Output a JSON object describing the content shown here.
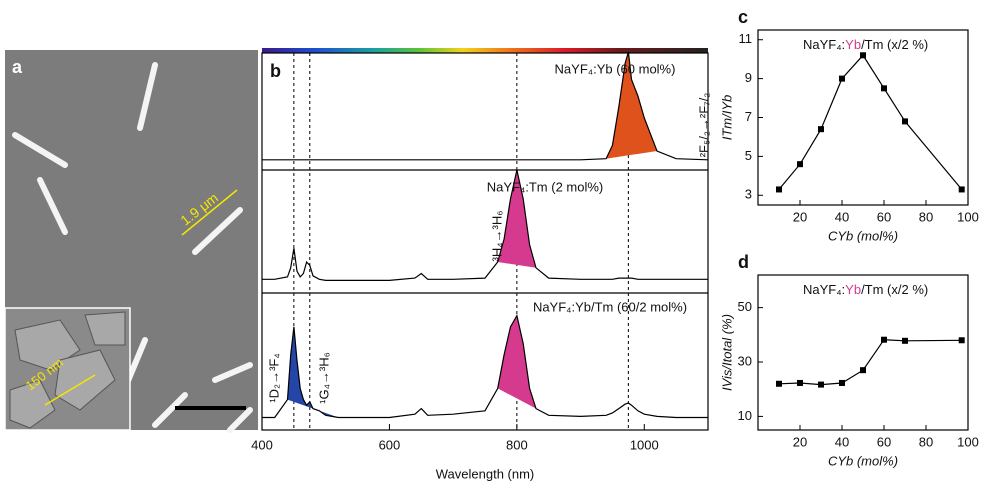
{
  "chart_data": [
    {
      "type": "image",
      "label": "a",
      "annotations": [
        "1.9 μm",
        "150 nm"
      ]
    },
    {
      "type": "spectra",
      "label": "b",
      "x_label": "Wavelength (nm)",
      "xlim": [
        400,
        1100
      ],
      "xticks": [
        400,
        600,
        800,
        1000
      ],
      "reference_lines": [
        450,
        475,
        800,
        975
      ],
      "x": [
        400,
        420,
        440,
        445,
        450,
        455,
        460,
        465,
        470,
        475,
        480,
        490,
        500,
        520,
        550,
        600,
        640,
        650,
        660,
        700,
        750,
        770,
        780,
        790,
        800,
        810,
        820,
        830,
        850,
        900,
        940,
        950,
        960,
        970,
        975,
        980,
        990,
        1000,
        1020,
        1050,
        1100
      ],
      "series": [
        {
          "name": "NaYF₄:Yb (60 mol%)",
          "color": "#000000",
          "fill_color": "#e0521c",
          "fill_range": [
            930,
            1040
          ],
          "transitions": [
            "²F₅/₂→²F₇/₂"
          ],
          "values": [
            0.02,
            0.02,
            0.02,
            0.02,
            0.02,
            0.02,
            0.02,
            0.02,
            0.02,
            0.02,
            0.02,
            0.02,
            0.02,
            0.02,
            0.02,
            0.02,
            0.02,
            0.02,
            0.02,
            0.02,
            0.02,
            0.02,
            0.02,
            0.02,
            0.02,
            0.02,
            0.02,
            0.02,
            0.02,
            0.02,
            0.03,
            0.15,
            0.5,
            0.9,
            1.0,
            0.75,
            0.6,
            0.4,
            0.1,
            0.03,
            0.02
          ]
        },
        {
          "name": "NaYF₄:Tm (2 mol%)",
          "color": "#000000",
          "fill_color": "#d63a8e",
          "fill_range": [
            760,
            840
          ],
          "transitions": [
            "³H₄→³H₆"
          ],
          "values": [
            0.05,
            0.05,
            0.07,
            0.15,
            0.32,
            0.12,
            0.07,
            0.1,
            0.2,
            0.17,
            0.08,
            0.05,
            0.04,
            0.04,
            0.04,
            0.04,
            0.06,
            0.1,
            0.05,
            0.05,
            0.06,
            0.2,
            0.4,
            0.75,
            1.0,
            0.75,
            0.35,
            0.15,
            0.06,
            0.05,
            0.05,
            0.05,
            0.06,
            0.06,
            0.06,
            0.06,
            0.05,
            0.05,
            0.05,
            0.05,
            0.05
          ]
        },
        {
          "name": "NaYF₄:Yb/Tm (60/2 mol%)",
          "color": "#000000",
          "fill_color": "#2346a8",
          "fill_range": [
            430,
            520
          ],
          "fill2_color": "#d63a8e",
          "fill2_range": [
            760,
            840
          ],
          "transitions": [
            "¹D₂→³F₄",
            "¹G₄→³H₆"
          ],
          "values": [
            0.04,
            0.04,
            0.2,
            0.6,
            0.85,
            0.55,
            0.3,
            0.2,
            0.15,
            0.18,
            0.12,
            0.1,
            0.06,
            0.04,
            0.04,
            0.04,
            0.07,
            0.12,
            0.06,
            0.07,
            0.1,
            0.3,
            0.6,
            0.85,
            0.95,
            0.7,
            0.3,
            0.12,
            0.06,
            0.05,
            0.06,
            0.08,
            0.12,
            0.16,
            0.17,
            0.15,
            0.1,
            0.07,
            0.05,
            0.04,
            0.04
          ]
        }
      ]
    },
    {
      "type": "line",
      "label": "c",
      "title_parts": [
        "NaYF₄:",
        "Yb",
        "/Tm (x/2 %)"
      ],
      "y_label": "ITm/IYb",
      "x_label": "CYb (mol%)",
      "xlim": [
        0,
        100
      ],
      "xticks": [
        20,
        40,
        60,
        80,
        100
      ],
      "ylim": [
        2.5,
        11.5
      ],
      "yticks": [
        3,
        5,
        7,
        9,
        11
      ],
      "x": [
        10,
        20,
        30,
        40,
        50,
        60,
        70,
        97
      ],
      "values": [
        3.3,
        4.6,
        6.4,
        9.0,
        10.2,
        8.5,
        6.8,
        3.3
      ],
      "color": "#000000"
    },
    {
      "type": "line",
      "label": "d",
      "title_parts": [
        "NaYF₄:",
        "Yb",
        "/Tm (x/2 %)"
      ],
      "y_label": "IVis/Itotal (%)",
      "x_label": "CYb (mol%)",
      "xlim": [
        0,
        100
      ],
      "xticks": [
        20,
        40,
        60,
        80,
        100
      ],
      "ylim": [
        5,
        62
      ],
      "yticks": [
        10,
        30,
        50
      ],
      "x": [
        10,
        20,
        30,
        40,
        50,
        60,
        70,
        97
      ],
      "values": [
        22,
        22.3,
        21.7,
        22.3,
        27,
        38.2,
        37.8,
        38
      ],
      "color": "#000000"
    }
  ]
}
